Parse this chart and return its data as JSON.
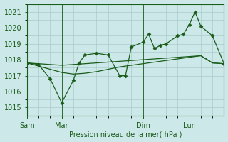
{
  "bg_color": "#cce8e8",
  "grid_color": "#aacccc",
  "line_color": "#1a5c1a",
  "marker_color": "#1a5c1a",
  "xlabel": "Pression niveau de la mer( hPa )",
  "ylim": [
    1014.5,
    1021.5
  ],
  "yticks": [
    1015,
    1016,
    1017,
    1018,
    1019,
    1020,
    1021
  ],
  "xtick_labels": [
    "Sam",
    "Mar",
    "Dim",
    "Lun"
  ],
  "xtick_positions": [
    0,
    36,
    120,
    168
  ],
  "vlines": [
    0,
    36,
    120,
    168
  ],
  "total_hours": 204,
  "series1_smooth": {
    "x": [
      0,
      12,
      24,
      36,
      48,
      60,
      72,
      84,
      96,
      108,
      120,
      132,
      144,
      156,
      168,
      180,
      192,
      204
    ],
    "y": [
      1017.8,
      1017.75,
      1017.7,
      1017.65,
      1017.7,
      1017.75,
      1017.8,
      1017.85,
      1017.9,
      1017.95,
      1018.0,
      1018.05,
      1018.1,
      1018.15,
      1018.2,
      1018.25,
      1017.8,
      1017.75
    ]
  },
  "series2_smooth": {
    "x": [
      0,
      12,
      24,
      36,
      48,
      60,
      72,
      84,
      96,
      108,
      120,
      132,
      144,
      156,
      168,
      180,
      192,
      204
    ],
    "y": [
      1017.8,
      1017.6,
      1017.4,
      1017.2,
      1017.1,
      1017.15,
      1017.25,
      1017.4,
      1017.55,
      1017.65,
      1017.75,
      1017.85,
      1017.95,
      1018.05,
      1018.15,
      1018.25,
      1017.8,
      1017.75
    ]
  },
  "series3_zigzag": {
    "x": [
      0,
      12,
      24,
      36,
      48,
      54,
      60,
      72,
      84,
      96,
      102,
      108,
      120,
      126,
      132,
      138,
      144,
      156,
      162,
      168,
      174,
      180,
      192,
      204
    ],
    "y": [
      1017.8,
      1017.7,
      1016.8,
      1015.3,
      1016.7,
      1017.8,
      1018.3,
      1018.4,
      1018.3,
      1017.0,
      1017.0,
      1018.8,
      1019.1,
      1019.6,
      1018.7,
      1018.9,
      1019.0,
      1019.5,
      1019.6,
      1020.2,
      1021.0,
      1020.1,
      1019.5,
      1017.75
    ]
  }
}
